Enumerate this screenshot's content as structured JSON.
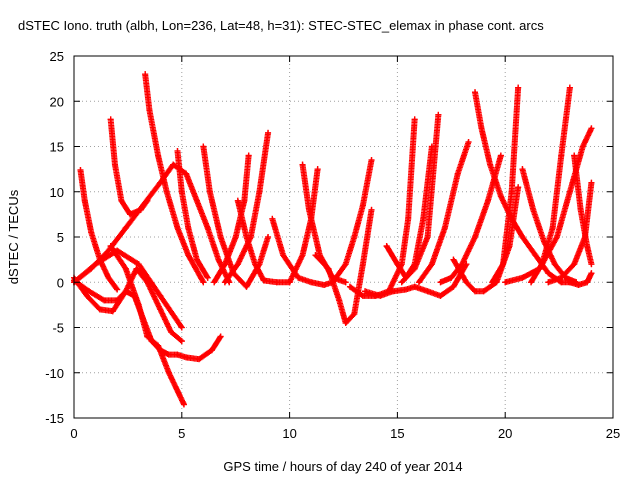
{
  "chart_data": {
    "type": "scatter",
    "title": "dSTEC Iono. truth (albh, Lon=236, Lat=48, h=31): STEC-STEC_elemax in phase cont. arcs",
    "xlabel": "GPS time / hours of day 240 of year 2014",
    "ylabel": "dSTEC  / TECUs",
    "xlim": [
      0,
      25
    ],
    "ylim": [
      -15,
      25
    ],
    "x_ticks": [
      0,
      5,
      10,
      15,
      20,
      25
    ],
    "y_ticks": [
      -15,
      -10,
      -5,
      0,
      5,
      10,
      15,
      20,
      25
    ],
    "x_tick_labels": [
      "0",
      "5",
      "10",
      "15",
      "20",
      "25"
    ],
    "y_tick_labels": [
      "-15",
      "-10",
      "-5",
      "0",
      "5",
      "10",
      "15",
      "20",
      "25"
    ],
    "grid": true,
    "legend": "none",
    "marker": "+",
    "color": "#ff0000",
    "arcs": [
      {
        "x": [
          0.0,
          0.8,
          1.6,
          2.4,
          3.2,
          4.0,
          4.6,
          5.2,
          5.7,
          6.2,
          6.7,
          7.2
        ],
        "y": [
          0.0,
          1.5,
          3.5,
          6.0,
          8.5,
          11.0,
          13.0,
          12.0,
          9.0,
          6.0,
          2.5,
          0.0
        ]
      },
      {
        "x": [
          0.3,
          0.5,
          0.8,
          1.2,
          1.6,
          2.0
        ],
        "y": [
          12.4,
          9.0,
          5.5,
          2.5,
          0.5,
          -0.8
        ]
      },
      {
        "x": [
          0.0,
          1.0,
          2.0,
          3.0,
          4.0,
          5.0
        ],
        "y": [
          0.0,
          2.0,
          3.5,
          2.0,
          -1.5,
          -5.0
        ]
      },
      {
        "x": [
          0.0,
          0.6,
          1.2,
          1.8,
          2.4,
          2.9,
          3.4,
          4.0,
          4.5,
          5.0
        ],
        "y": [
          0.5,
          -1.5,
          -3.0,
          -3.2,
          -1.0,
          1.5,
          0.0,
          -3.0,
          -5.5,
          -6.5
        ]
      },
      {
        "x": [
          0.0,
          0.7,
          1.4,
          2.0,
          2.4,
          2.8,
          3.2,
          3.6,
          4.0,
          4.4,
          4.8,
          5.2,
          5.8,
          6.4,
          6.8
        ],
        "y": [
          0.2,
          -1.0,
          -2.0,
          -2.0,
          -1.0,
          -1.5,
          -4.0,
          -6.5,
          -7.5,
          -8.0,
          -8.0,
          -8.3,
          -8.5,
          -7.5,
          -6.0
        ]
      },
      {
        "x": [
          1.7,
          1.9,
          2.2,
          2.6,
          3.1,
          3.4
        ],
        "y": [
          18.0,
          13.0,
          9.0,
          7.5,
          8.0,
          9.0
        ]
      },
      {
        "x": [
          1.7,
          2.4,
          3.0,
          3.4,
          3.9,
          4.4,
          4.8,
          5.1
        ],
        "y": [
          4.0,
          1.5,
          -2.5,
          -6.0,
          -7.0,
          -10.0,
          -12.0,
          -13.5
        ]
      },
      {
        "x": [
          3.3,
          3.5,
          3.9,
          4.3,
          4.8,
          5.3,
          6.0
        ],
        "y": [
          23.0,
          19.0,
          14.0,
          10.0,
          6.0,
          3.0,
          0.0
        ]
      },
      {
        "x": [
          4.8,
          5.0,
          5.3,
          5.7,
          6.2
        ],
        "y": [
          14.5,
          10.0,
          6.0,
          2.5,
          0.5
        ]
      },
      {
        "x": [
          6.0,
          6.3,
          6.8,
          7.4,
          8.0,
          8.6,
          9.0
        ],
        "y": [
          15.0,
          10.0,
          5.0,
          1.0,
          -0.5,
          2.0,
          5.0
        ]
      },
      {
        "x": [
          6.5,
          7.0,
          7.5,
          7.9,
          8.1
        ],
        "y": [
          0.0,
          2.0,
          5.0,
          9.0,
          14.0
        ]
      },
      {
        "x": [
          7.0,
          7.6,
          8.2,
          8.6,
          9.0
        ],
        "y": [
          0.0,
          2.0,
          5.0,
          10.0,
          16.5
        ]
      },
      {
        "x": [
          7.6,
          8.0,
          8.4,
          8.8,
          9.4,
          10.0
        ],
        "y": [
          9.0,
          5.0,
          2.0,
          0.2,
          0.0,
          0.0
        ]
      },
      {
        "x": [
          9.2,
          9.7,
          10.4,
          11.0,
          11.6,
          12.0
        ],
        "y": [
          7.0,
          3.0,
          0.5,
          0.0,
          -0.3,
          0.0
        ]
      },
      {
        "x": [
          10.0,
          10.6,
          11.0,
          11.3
        ],
        "y": [
          0.0,
          3.0,
          7.0,
          12.5
        ]
      },
      {
        "x": [
          10.6,
          10.9,
          11.4,
          12.0,
          12.6
        ],
        "y": [
          13.0,
          8.0,
          3.0,
          0.5,
          0.0
        ]
      },
      {
        "x": [
          11.2,
          11.8,
          12.3,
          12.6,
          13.0,
          13.4,
          13.8
        ],
        "y": [
          3.0,
          1.5,
          -2.0,
          -4.5,
          -3.5,
          2.0,
          8.0
        ]
      },
      {
        "x": [
          12.0,
          12.6,
          13.0,
          13.4,
          13.8
        ],
        "y": [
          0.0,
          2.0,
          5.0,
          8.5,
          13.5
        ]
      },
      {
        "x": [
          12.8,
          13.4,
          14.0,
          14.6,
          15.2,
          15.5,
          15.8
        ],
        "y": [
          -0.5,
          -1.5,
          -1.5,
          -1.0,
          2.0,
          7.0,
          18.0
        ]
      },
      {
        "x": [
          13.5,
          14.2,
          14.8,
          15.4,
          15.8,
          16.4,
          17.0,
          17.6,
          18.2
        ],
        "y": [
          -1.0,
          -1.5,
          -1.0,
          -0.8,
          -0.5,
          -1.0,
          -1.5,
          -0.5,
          2.0
        ]
      },
      {
        "x": [
          14.5,
          15.0,
          15.4,
          15.8,
          16.2,
          16.6
        ],
        "y": [
          4.0,
          2.0,
          0.5,
          2.0,
          7.0,
          15.0
        ]
      },
      {
        "x": [
          15.2,
          15.8,
          16.4,
          16.9
        ],
        "y": [
          0.0,
          1.5,
          5.0,
          18.5
        ]
      },
      {
        "x": [
          16.0,
          16.6,
          17.2,
          17.8,
          18.3
        ],
        "y": [
          0.0,
          2.0,
          6.0,
          12.0,
          15.5
        ]
      },
      {
        "x": [
          17.0,
          17.5,
          18.0,
          18.6,
          19.2,
          19.8
        ],
        "y": [
          0.0,
          0.5,
          2.0,
          5.0,
          9.0,
          14.0
        ]
      },
      {
        "x": [
          17.6,
          18.2,
          18.6,
          19.0,
          19.6,
          20.2,
          20.6
        ],
        "y": [
          2.5,
          0.0,
          -1.0,
          -1.0,
          0.0,
          4.0,
          10.5
        ]
      },
      {
        "x": [
          18.6,
          18.9,
          19.3,
          19.8,
          20.3,
          20.8,
          21.4,
          22.0,
          22.6,
          23.2
        ],
        "y": [
          21.0,
          17.0,
          13.0,
          9.5,
          7.0,
          5.0,
          3.0,
          1.0,
          0.0,
          0.0
        ]
      },
      {
        "x": [
          19.4,
          19.9,
          20.3,
          20.6
        ],
        "y": [
          0.0,
          2.0,
          10.0,
          21.5
        ]
      },
      {
        "x": [
          20.0,
          20.8,
          21.6,
          22.4,
          23.0,
          23.6,
          24.0
        ],
        "y": [
          0.0,
          0.5,
          1.5,
          5.0,
          10.0,
          15.0,
          17.0
        ]
      },
      {
        "x": [
          20.8,
          21.3,
          21.8,
          22.3,
          22.8,
          23.3
        ],
        "y": [
          12.5,
          8.0,
          4.5,
          2.0,
          0.5,
          0.0
        ]
      },
      {
        "x": [
          21.2,
          21.7,
          22.2,
          22.6,
          23.0
        ],
        "y": [
          0.0,
          2.0,
          6.0,
          14.0,
          21.5
        ]
      },
      {
        "x": [
          22.0,
          22.6,
          23.2,
          23.7,
          24.0
        ],
        "y": [
          0.0,
          0.5,
          2.0,
          5.0,
          11.0
        ]
      },
      {
        "x": [
          23.2,
          23.5,
          23.8,
          24.0
        ],
        "y": [
          14.0,
          8.0,
          4.0,
          2.0
        ]
      },
      {
        "x": [
          23.0,
          23.4,
          23.8,
          24.0
        ],
        "y": [
          0.0,
          -0.3,
          0.0,
          1.0
        ]
      }
    ]
  }
}
